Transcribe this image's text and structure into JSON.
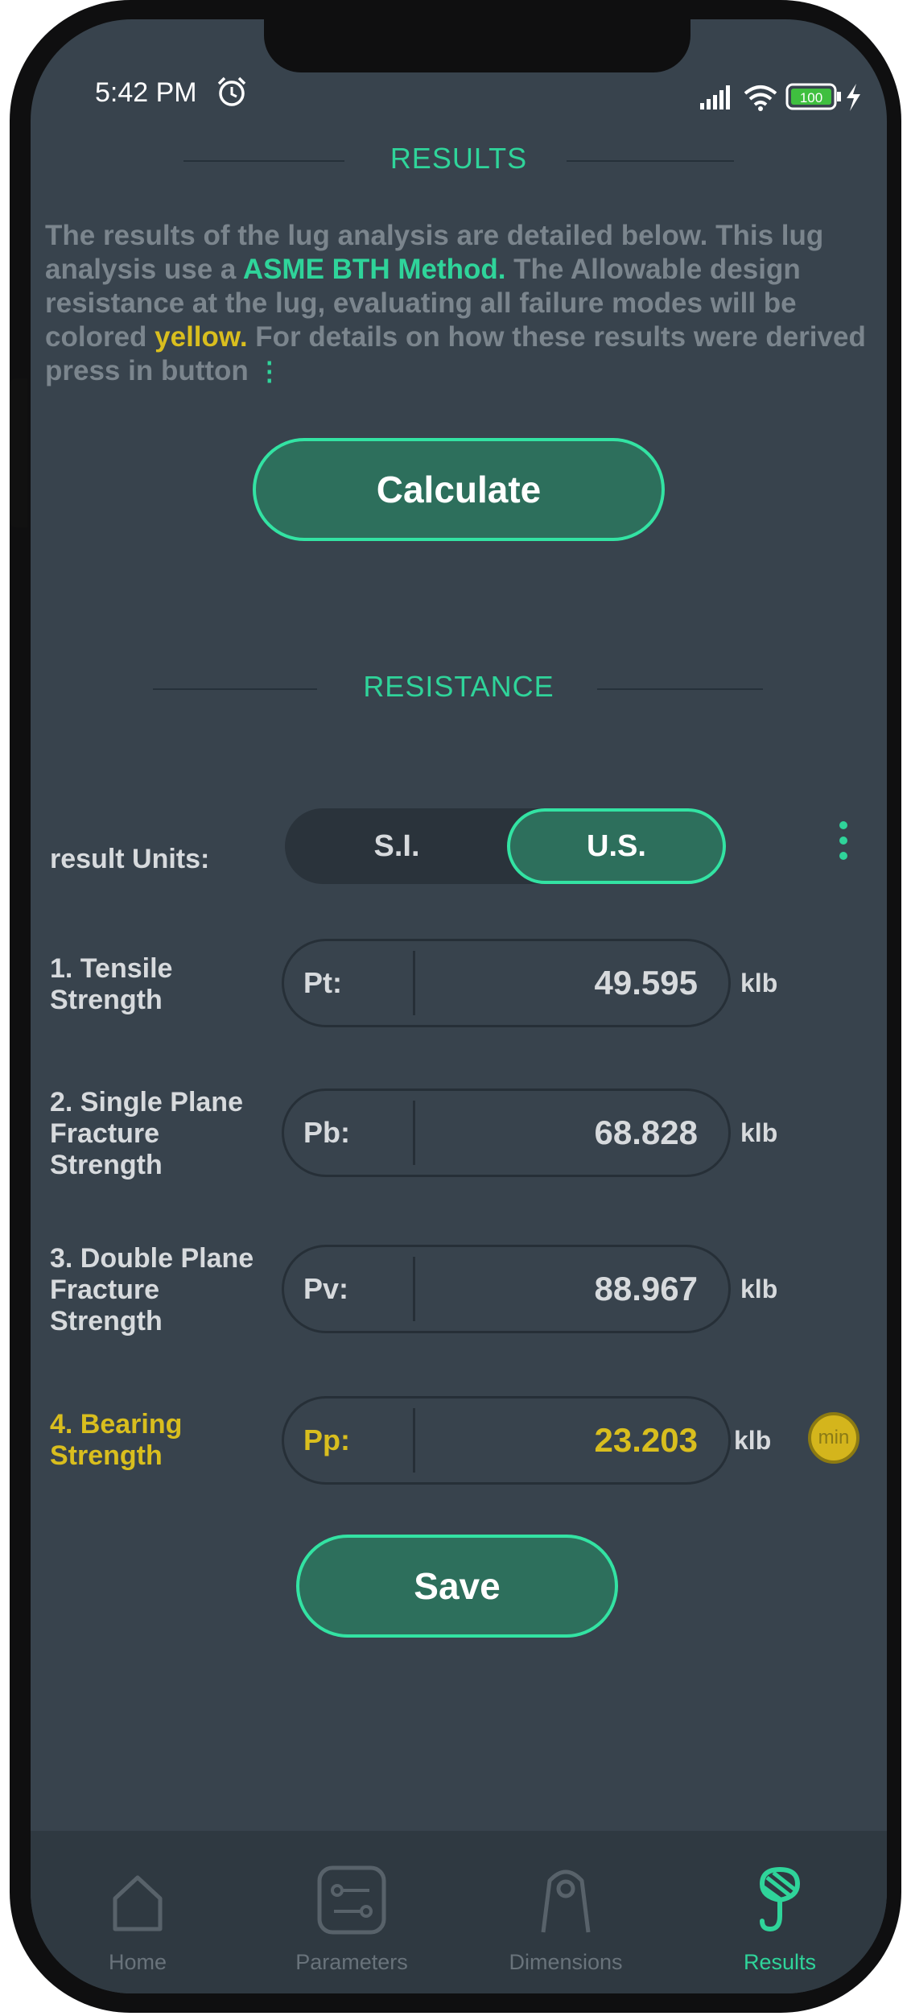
{
  "status_bar": {
    "time": "5:42 PM",
    "battery": "100"
  },
  "results_header": {
    "title": "RESULTS"
  },
  "description": {
    "part1": "The results of the lug analysis are detailed below. This lug analysis use a ",
    "method": "ASME BTH Method.",
    "part2": " The Allowable design resistance at the lug, evaluating all failure modes will be colored ",
    "color_word": "yellow.",
    "part3": " For details on how these results were derived press in button",
    "dots": "⋮"
  },
  "calculate_button": {
    "label": "Calculate"
  },
  "resistance_header": {
    "title": "RESISTANCE"
  },
  "units": {
    "label": "result Units:",
    "options": [
      "S.I.",
      "U.S."
    ],
    "selected": "U.S."
  },
  "results": [
    {
      "label": "1. Tensile Strength",
      "symbol": "Pt:",
      "value": "49.595",
      "unit": "klb"
    },
    {
      "label": "2. Single Plane Fracture Strength",
      "symbol": "Pb:",
      "value": "68.828",
      "unit": "klb"
    },
    {
      "label": "3. Double Plane Fracture Strength",
      "symbol": "Pv:",
      "value": "88.967",
      "unit": "klb"
    },
    {
      "label": "4. Bearing Strength",
      "symbol": "Pp:",
      "value": "23.203",
      "unit": "klb",
      "badge": "min"
    }
  ],
  "save_button": {
    "label": "Save"
  },
  "tabs": [
    {
      "label": "Home",
      "icon": "home-icon"
    },
    {
      "label": "Parameters",
      "icon": "sliders-icon"
    },
    {
      "label": "Dimensions",
      "icon": "lug-icon"
    },
    {
      "label": "Results",
      "icon": "hook-icon",
      "active": true
    }
  ],
  "colors": {
    "background": "#38434d",
    "accent_green": "#2fd49a",
    "accent_yellow": "#d9be1e",
    "button_fill": "#2d6f5c"
  }
}
